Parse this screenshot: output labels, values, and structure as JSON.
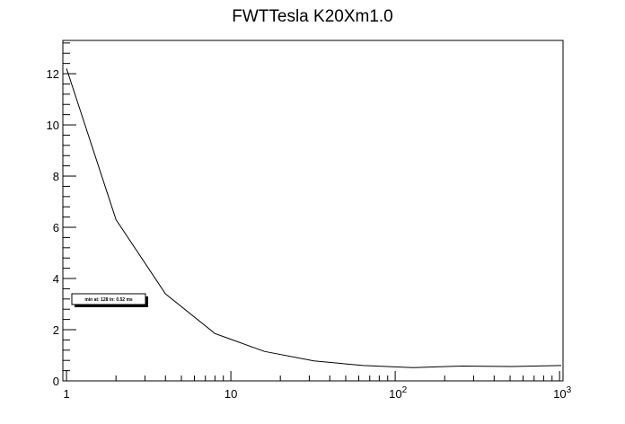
{
  "chart_data": {
    "type": "line",
    "title": "FWTTesla K20Xm1.0",
    "xlabel": "",
    "ylabel": "",
    "x_scale": "log",
    "xlim": [
      0.95,
      1050
    ],
    "ylim": [
      0,
      13.3
    ],
    "grid": false,
    "x_ticks": [
      {
        "value": 1,
        "label": "1"
      },
      {
        "value": 10,
        "label": "10"
      },
      {
        "value": 100,
        "label": "10",
        "exp": "2"
      },
      {
        "value": 1000,
        "label": "10",
        "exp": "3"
      }
    ],
    "y_ticks": [
      0,
      2,
      4,
      6,
      8,
      10,
      12
    ],
    "series": [
      {
        "x": [
          1,
          2,
          4,
          8,
          16,
          32,
          64,
          128,
          256,
          512,
          1024
        ],
        "y": [
          12.2,
          6.3,
          3.4,
          1.85,
          1.15,
          0.78,
          0.6,
          0.52,
          0.58,
          0.56,
          0.6
        ]
      }
    ],
    "annotation": {
      "text": "min at: 128 in: 0.52 ms"
    }
  }
}
